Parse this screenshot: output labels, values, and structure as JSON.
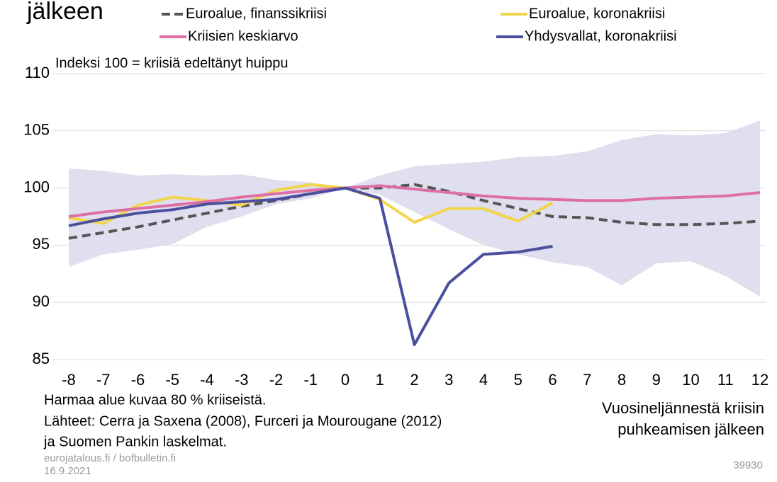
{
  "chart_data": {
    "type": "line",
    "title": "jälkeen",
    "subtitle": "Indeksi 100 = kriisiä edeltänyt huippu",
    "xlabel": [
      "Vuosineljännestä kriisin",
      "puhkeamisen jälkeen"
    ],
    "notes": [
      "Harmaa alue kuvaa 80 % kriiseistä.",
      "Lähteet: Cerra ja Saxena (2008), Furceri ja Mourougane (2012)",
      "ja Suomen Pankin laskelmat."
    ],
    "source": [
      "eurojatalous.fi / bofbulletin.fi",
      "16.9.2021"
    ],
    "chart_id": "39930",
    "x": [
      -8,
      -7,
      -6,
      -5,
      -4,
      -3,
      -2,
      -1,
      0,
      1,
      2,
      3,
      4,
      5,
      6,
      7,
      8,
      9,
      10,
      11,
      12
    ],
    "xlim": [
      -8,
      12
    ],
    "xticks": [
      -8,
      -7,
      -6,
      -5,
      -4,
      -3,
      -2,
      -1,
      0,
      1,
      2,
      3,
      4,
      5,
      6,
      7,
      8,
      9,
      10,
      11,
      12
    ],
    "ylim": [
      85,
      110
    ],
    "yticks": [
      85,
      90,
      95,
      100,
      105,
      110
    ],
    "grid": true,
    "band": {
      "color": "#d9d9ec",
      "upper": [
        101.7,
        101.5,
        101.1,
        101.2,
        101.1,
        101.2,
        100.7,
        100.5,
        100,
        101.1,
        101.9,
        102.1,
        102.3,
        102.7,
        102.8,
        103.2,
        104.2,
        104.7,
        104.6,
        104.8,
        105.9
      ],
      "lower": [
        93.1,
        94.2,
        94.6,
        95.1,
        96.6,
        97.5,
        98.6,
        99.1,
        100,
        99.4,
        97.9,
        96.4,
        95.0,
        94.2,
        93.5,
        93.1,
        91.5,
        93.4,
        93.6,
        92.3,
        90.5
      ]
    },
    "series": [
      {
        "name": "Euroalue, finanssikriisi",
        "color": "#555555",
        "dashed": true,
        "values": [
          95.6,
          96.1,
          96.6,
          97.2,
          97.8,
          98.4,
          98.9,
          99.5,
          100,
          100,
          100.3,
          99.7,
          98.9,
          98.2,
          97.5,
          97.4,
          97.0,
          96.8,
          96.8,
          96.9,
          97.1
        ]
      },
      {
        "name": "Euroalue, koronakriisi",
        "color": "#f2d54a",
        "dashed": false,
        "values": [
          97.4,
          96.9,
          98.5,
          99.2,
          98.9,
          98.5,
          99.8,
          100.3,
          100,
          99,
          97,
          98.2,
          98.2,
          97.1,
          98.7,
          null,
          null,
          null,
          null,
          null,
          null
        ]
      },
      {
        "name": "Kriisien keskiarvo",
        "color": "#de6fa5",
        "dashed": false,
        "values": [
          97.5,
          97.9,
          98.2,
          98.5,
          98.8,
          99.2,
          99.5,
          99.8,
          100,
          100.2,
          99.9,
          99.6,
          99.3,
          99.1,
          99.0,
          98.9,
          98.9,
          99.1,
          99.2,
          99.3,
          99.6
        ]
      },
      {
        "name": "Yhdysvallat, koronakriisi",
        "color": "#4b4f9e",
        "dashed": false,
        "values": [
          96.7,
          97.3,
          97.8,
          98.1,
          98.6,
          98.8,
          99.0,
          99.5,
          100,
          99.1,
          86.3,
          91.7,
          94.2,
          94.4,
          94.9,
          null,
          null,
          null,
          null,
          null,
          null
        ]
      }
    ]
  }
}
